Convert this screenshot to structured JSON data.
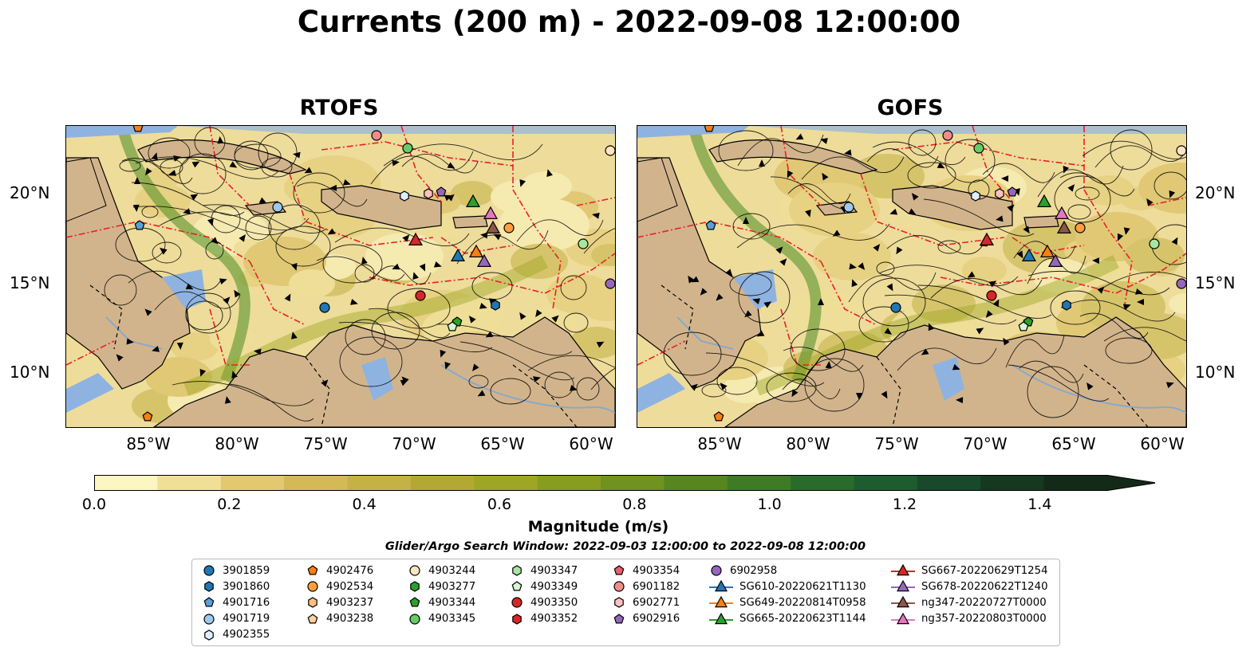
{
  "title": "Currents (200 m) - 2022-09-08 12:00:00",
  "panels": [
    {
      "title": "RTOFS"
    },
    {
      "title": "GOFS"
    }
  ],
  "axes": {
    "lon_ticks": [
      "85°W",
      "80°W",
      "75°W",
      "70°W",
      "65°W",
      "60°W"
    ],
    "lat_ticks": [
      "20°N",
      "15°N",
      "10°N"
    ]
  },
  "colorbar": {
    "label": "Magnitude (m/s)",
    "ticks": [
      "0.0",
      "0.2",
      "0.4",
      "0.6",
      "0.8",
      "1.0",
      "1.2",
      "1.4"
    ],
    "colors": [
      "#fcf6c2",
      "#f0e096",
      "#e2c96f",
      "#d5b957",
      "#c4b246",
      "#b2a935",
      "#9ea626",
      "#879d1f",
      "#6f931e",
      "#57861f",
      "#3f7a25",
      "#2a6b2c",
      "#1e5c30",
      "#17492a",
      "#15381f",
      "#142a18"
    ]
  },
  "search_window": "Glider/Argo Search Window: 2022-09-03 12:00:00 to 2022-09-08 12:00:00",
  "legend": {
    "columns": [
      [
        {
          "label": "3901859",
          "shape": "circle",
          "color": "#1f77b4"
        },
        {
          "label": "3901860",
          "shape": "hexagon",
          "color": "#1f77b4"
        },
        {
          "label": "4901716",
          "shape": "pentagon",
          "color": "#5aa0d8"
        },
        {
          "label": "4901719",
          "shape": "circle",
          "color": "#9ec9ee"
        },
        {
          "label": "4902355",
          "shape": "hexagon",
          "color": "#dceeff"
        }
      ],
      [
        {
          "label": "4902476",
          "shape": "pentagon",
          "color": "#ff7f0e"
        },
        {
          "label": "4902534",
          "shape": "circle",
          "color": "#ff9f40"
        },
        {
          "label": "4903237",
          "shape": "hexagon",
          "color": "#ffbf80"
        },
        {
          "label": "4903238",
          "shape": "pentagon",
          "color": "#ffd0a0"
        }
      ],
      [
        {
          "label": "4903244",
          "shape": "circle",
          "color": "#ffe4c4"
        },
        {
          "label": "4903277",
          "shape": "hexagon",
          "color": "#2ca02c"
        },
        {
          "label": "4903344",
          "shape": "pentagon",
          "color": "#2ca02c"
        },
        {
          "label": "4903345",
          "shape": "circle",
          "color": "#66cc66"
        }
      ],
      [
        {
          "label": "4903347",
          "shape": "hexagon",
          "color": "#a8e6a0"
        },
        {
          "label": "4903349",
          "shape": "pentagon",
          "color": "#d6f5d0"
        },
        {
          "label": "4903350",
          "shape": "circle",
          "color": "#d62728"
        },
        {
          "label": "4903352",
          "shape": "hexagon",
          "color": "#d62728"
        }
      ],
      [
        {
          "label": "4903354",
          "shape": "pentagon",
          "color": "#e8606a"
        },
        {
          "label": "6901182",
          "shape": "circle",
          "color": "#f08c8c"
        },
        {
          "label": "6902771",
          "shape": "hexagon",
          "color": "#ffc0c0"
        },
        {
          "label": "6902916",
          "shape": "pentagon",
          "color": "#9467bd"
        }
      ],
      [
        {
          "label": "6902958",
          "shape": "circle",
          "color": "#9467bd"
        },
        {
          "label": "SG610-20220621T1130",
          "shape": "triangle-line",
          "color": "#1f77b4"
        },
        {
          "label": "SG649-20220814T0958",
          "shape": "triangle-line",
          "color": "#ff7f0e"
        },
        {
          "label": "SG665-20220623T1144",
          "shape": "triangle-line",
          "color": "#2ca02c"
        }
      ],
      [
        {
          "label": "SG667-20220629T1254",
          "shape": "triangle-line",
          "color": "#d62728"
        },
        {
          "label": "SG678-20220622T1240",
          "shape": "triangle-line",
          "color": "#9467bd"
        },
        {
          "label": "ng347-20220727T0000",
          "shape": "triangle-line",
          "color": "#8c564b"
        },
        {
          "label": "ng357-20220803T0000",
          "shape": "triangle-line",
          "color": "#e377c2"
        }
      ]
    ]
  },
  "colors": {
    "land": "#d2b48c",
    "shelf_water": "#8fb3e0",
    "track_line": "#e8202a",
    "streamline": "#000000",
    "river": "#8aa8c8"
  }
}
